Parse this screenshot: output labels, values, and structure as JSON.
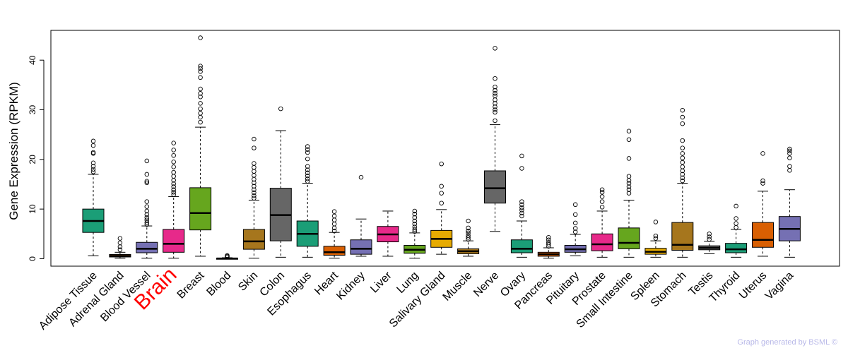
{
  "chart_data": {
    "type": "boxplot",
    "title": "",
    "xlabel": "",
    "ylabel": "Gene Expression (RPKM)",
    "ylim": [
      -1.5,
      46
    ],
    "yticks": [
      0,
      10,
      20,
      30,
      40
    ],
    "highlight_category": "Brain",
    "credit": "Graph generated by BSML ©",
    "categories": [
      "Adipose Tissue",
      "Adrenal Gland",
      "Blood Vessel",
      "Brain",
      "Breast",
      "Blood",
      "Skin",
      "Colon",
      "Esophagus",
      "Heart",
      "Kidney",
      "Liver",
      "Lung",
      "Salivary Gland",
      "Muscle",
      "Nerve",
      "Ovary",
      "Pancreas",
      "Pituitary",
      "Prostate",
      "Small Intestine",
      "Spleen",
      "Stomach",
      "Testis",
      "Thyroid",
      "Uterus",
      "Vagina"
    ],
    "boxes": [
      {
        "name": "Adipose Tissue",
        "color": "#1b9e77",
        "min": 0.6,
        "q1": 5.3,
        "median": 7.6,
        "q3": 10.0,
        "max": 17.0,
        "outliers": [
          17.5,
          18.0,
          18.6,
          19.3,
          21.2,
          21.4,
          22.8,
          23.7
        ]
      },
      {
        "name": "Adrenal Gland",
        "color": "#7b3f10",
        "min": 0.1,
        "q1": 0.35,
        "median": 0.55,
        "q3": 0.85,
        "max": 1.3,
        "outliers": [
          1.8,
          2.4,
          3.2,
          4.1
        ]
      },
      {
        "name": "Blood Vessel",
        "color": "#7570b3",
        "min": 0.1,
        "q1": 1.2,
        "median": 2.0,
        "q3": 3.3,
        "max": 6.6,
        "outliers": [
          6.9,
          7.3,
          7.8,
          8.3,
          8.9,
          9.6,
          10.5,
          11.5,
          15.3,
          15.6,
          17.0,
          19.7
        ]
      },
      {
        "name": "Brain",
        "color": "#e7298a",
        "min": 0.1,
        "q1": 1.3,
        "median": 3.0,
        "q3": 5.9,
        "max": 12.5,
        "outliers": [
          12.9,
          13.4,
          13.9,
          14.5,
          15.1,
          15.8,
          16.6,
          17.4,
          18.5,
          19.5,
          20.8,
          21.9,
          23.3
        ]
      },
      {
        "name": "Breast",
        "color": "#66a61e",
        "min": 0.5,
        "q1": 5.8,
        "median": 9.2,
        "q3": 14.3,
        "max": 26.5,
        "outliers": [
          27.5,
          28.5,
          29.3,
          30.2,
          31.3,
          32.6,
          33.3,
          34.2,
          36.5,
          37.7,
          38.3,
          38.8,
          44.5
        ]
      },
      {
        "name": "Blood",
        "color": "#111111",
        "min": 0.0,
        "q1": 0.02,
        "median": 0.05,
        "q3": 0.1,
        "max": 0.2,
        "outliers": [
          0.35,
          0.5,
          0.65
        ]
      },
      {
        "name": "Skin",
        "color": "#a6761d",
        "min": 0.1,
        "q1": 1.9,
        "median": 3.5,
        "q3": 5.9,
        "max": 11.8,
        "outliers": [
          12.2,
          12.7,
          13.3,
          13.9,
          14.6,
          15.3,
          16.0,
          16.8,
          17.6,
          18.4,
          19.2,
          22.3,
          24.1
        ]
      },
      {
        "name": "Colon",
        "color": "#666666",
        "min": 0.3,
        "q1": 3.6,
        "median": 8.8,
        "q3": 14.2,
        "max": 25.8,
        "outliers": [
          30.2
        ]
      },
      {
        "name": "Esophagus",
        "color": "#1b9e77",
        "min": 0.3,
        "q1": 2.5,
        "median": 5.0,
        "q3": 7.6,
        "max": 15.2,
        "outliers": [
          15.6,
          16.1,
          16.7,
          17.3,
          17.9,
          18.6,
          20.1,
          21.4,
          22.0,
          22.6
        ]
      },
      {
        "name": "Heart",
        "color": "#d95f02",
        "min": 0.1,
        "q1": 0.7,
        "median": 1.3,
        "q3": 2.5,
        "max": 5.3,
        "outliers": [
          5.6,
          6.2,
          7.0,
          7.8,
          8.6,
          9.5
        ]
      },
      {
        "name": "Kidney",
        "color": "#7570b3",
        "min": 0.5,
        "q1": 0.9,
        "median": 2.0,
        "q3": 3.8,
        "max": 8.0,
        "outliers": [
          16.4
        ]
      },
      {
        "name": "Liver",
        "color": "#e7298a",
        "min": 0.5,
        "q1": 3.4,
        "median": 4.9,
        "q3": 6.5,
        "max": 9.6,
        "outliers": []
      },
      {
        "name": "Lung",
        "color": "#66a61e",
        "min": 0.1,
        "q1": 1.1,
        "median": 1.8,
        "q3": 2.7,
        "max": 5.2,
        "outliers": [
          5.5,
          5.9,
          6.4,
          7.0,
          7.6,
          8.3,
          9.0,
          9.6
        ]
      },
      {
        "name": "Salivary Gland",
        "color": "#e6ab02",
        "min": 0.9,
        "q1": 2.3,
        "median": 4.0,
        "q3": 5.7,
        "max": 9.9,
        "outliers": [
          11.2,
          13.2,
          14.6,
          19.1
        ]
      },
      {
        "name": "Muscle",
        "color": "#a6761d",
        "min": 0.5,
        "q1": 1.0,
        "median": 1.5,
        "q3": 2.0,
        "max": 3.6,
        "outliers": [
          3.9,
          4.3,
          4.7,
          5.2,
          5.6,
          6.2,
          7.6
        ]
      },
      {
        "name": "Nerve",
        "color": "#666666",
        "min": 5.5,
        "q1": 11.2,
        "median": 14.2,
        "q3": 17.7,
        "max": 27.0,
        "outliers": [
          27.8,
          29.5,
          30.0,
          30.6,
          31.3,
          32.0,
          32.8,
          33.3,
          33.9,
          34.6,
          36.3,
          42.4
        ]
      },
      {
        "name": "Ovary",
        "color": "#1b9e77",
        "min": 0.3,
        "q1": 1.2,
        "median": 2.0,
        "q3": 3.8,
        "max": 7.6,
        "outliers": [
          8.6,
          9.2,
          9.8,
          10.3,
          10.9,
          11.5,
          18.2,
          20.7
        ]
      },
      {
        "name": "Pancreas",
        "color": "#d95f02",
        "min": 0.1,
        "q1": 0.5,
        "median": 0.9,
        "q3": 1.3,
        "max": 2.2,
        "outliers": [
          2.5,
          2.9,
          3.3,
          3.8,
          4.3
        ]
      },
      {
        "name": "Pituitary",
        "color": "#7570b3",
        "min": 0.6,
        "q1": 1.3,
        "median": 1.9,
        "q3": 2.7,
        "max": 4.9,
        "outliers": [
          5.4,
          6.1,
          7.2,
          8.9,
          10.9
        ]
      },
      {
        "name": "Prostate",
        "color": "#e7298a",
        "min": 0.3,
        "q1": 1.6,
        "median": 2.9,
        "q3": 5.0,
        "max": 9.6,
        "outliers": [
          10.4,
          11.5,
          12.5,
          13.4,
          13.9
        ]
      },
      {
        "name": "Small Intestine",
        "color": "#66a61e",
        "min": 0.3,
        "q1": 2.0,
        "median": 3.2,
        "q3": 6.2,
        "max": 11.8,
        "outliers": [
          13.2,
          13.9,
          14.5,
          15.2,
          15.8,
          16.6,
          20.2,
          24.0,
          25.7
        ]
      },
      {
        "name": "Spleen",
        "color": "#e6ab02",
        "min": 0.3,
        "q1": 0.9,
        "median": 1.4,
        "q3": 2.1,
        "max": 3.6,
        "outliers": [
          4.1,
          4.6,
          7.4
        ]
      },
      {
        "name": "Stomach",
        "color": "#a6761d",
        "min": 0.3,
        "q1": 1.7,
        "median": 2.8,
        "q3": 7.3,
        "max": 15.2,
        "outliers": [
          15.7,
          16.3,
          17.0,
          17.7,
          18.5,
          19.4,
          20.3,
          21.2,
          22.3,
          23.8,
          27.2,
          28.5,
          29.9
        ]
      },
      {
        "name": "Testis",
        "color": "#666666",
        "min": 1.0,
        "q1": 1.8,
        "median": 2.2,
        "q3": 2.6,
        "max": 3.5,
        "outliers": [
          3.9,
          4.4,
          5.0
        ]
      },
      {
        "name": "Thyroid",
        "color": "#1b9e77",
        "min": 0.3,
        "q1": 1.2,
        "median": 1.9,
        "q3": 3.1,
        "max": 5.9,
        "outliers": [
          6.3,
          7.1,
          8.1,
          10.6
        ]
      },
      {
        "name": "Uterus",
        "color": "#d95f02",
        "min": 0.5,
        "q1": 2.3,
        "median": 3.8,
        "q3": 7.3,
        "max": 13.6,
        "outliers": [
          15.2,
          15.7,
          21.2
        ]
      },
      {
        "name": "Vagina",
        "color": "#7570b3",
        "min": 0.3,
        "q1": 3.6,
        "median": 6.0,
        "q3": 8.5,
        "max": 13.9,
        "outliers": [
          17.8,
          18.6,
          20.3,
          21.2,
          21.7,
          22.1
        ]
      }
    ]
  }
}
